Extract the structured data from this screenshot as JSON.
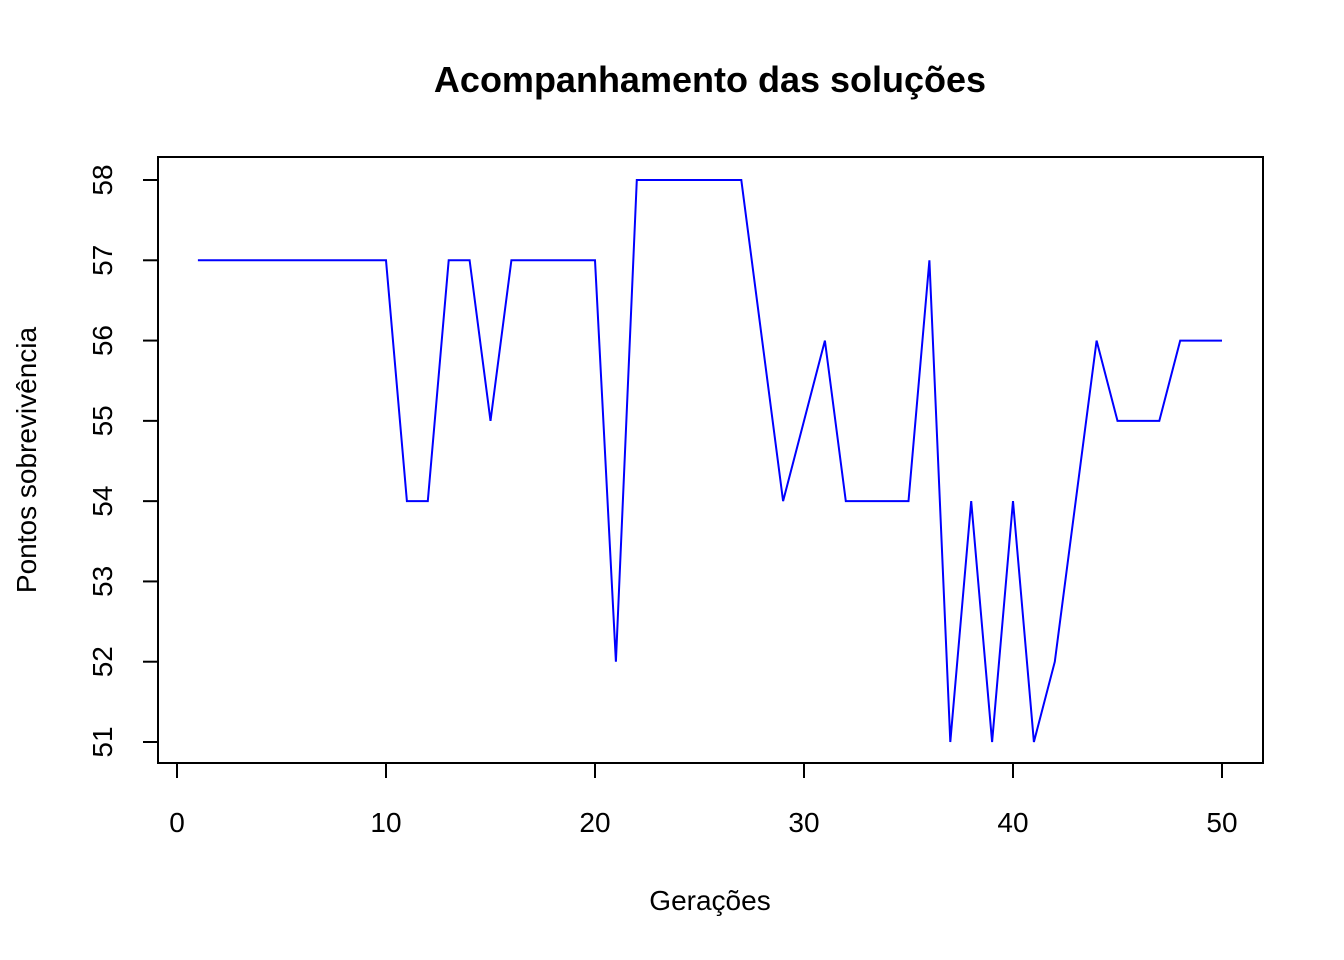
{
  "chart_data": {
    "type": "line",
    "title": "Acompanhamento das soluções",
    "xlabel": "Gerações",
    "ylabel": "Pontos sobrevivência",
    "xlim": [
      0,
      50
    ],
    "ylim": [
      51,
      58
    ],
    "xticks": [
      0,
      10,
      20,
      30,
      40,
      50
    ],
    "yticks": [
      51,
      52,
      53,
      54,
      55,
      56,
      57,
      58
    ],
    "grid": false,
    "series": [
      {
        "color": "#0000ff",
        "x": [
          1,
          2,
          3,
          4,
          5,
          6,
          7,
          8,
          9,
          10,
          11,
          12,
          13,
          14,
          15,
          16,
          17,
          18,
          19,
          20,
          21,
          22,
          23,
          24,
          25,
          26,
          27,
          28,
          29,
          30,
          31,
          32,
          33,
          34,
          35,
          36,
          37,
          38,
          39,
          40,
          41,
          42,
          43,
          44,
          45,
          46,
          47,
          48,
          49,
          50
        ],
        "values": [
          57,
          57,
          57,
          57,
          57,
          57,
          57,
          57,
          57,
          57,
          54,
          54,
          57,
          57,
          55,
          57,
          57,
          57,
          57,
          57,
          52,
          58,
          58,
          58,
          58,
          58,
          58,
          56,
          54,
          55,
          56,
          54,
          54,
          54,
          54,
          57,
          51,
          54,
          51,
          54,
          51,
          52,
          54,
          56,
          55,
          55,
          55,
          56,
          56,
          56
        ]
      }
    ]
  }
}
